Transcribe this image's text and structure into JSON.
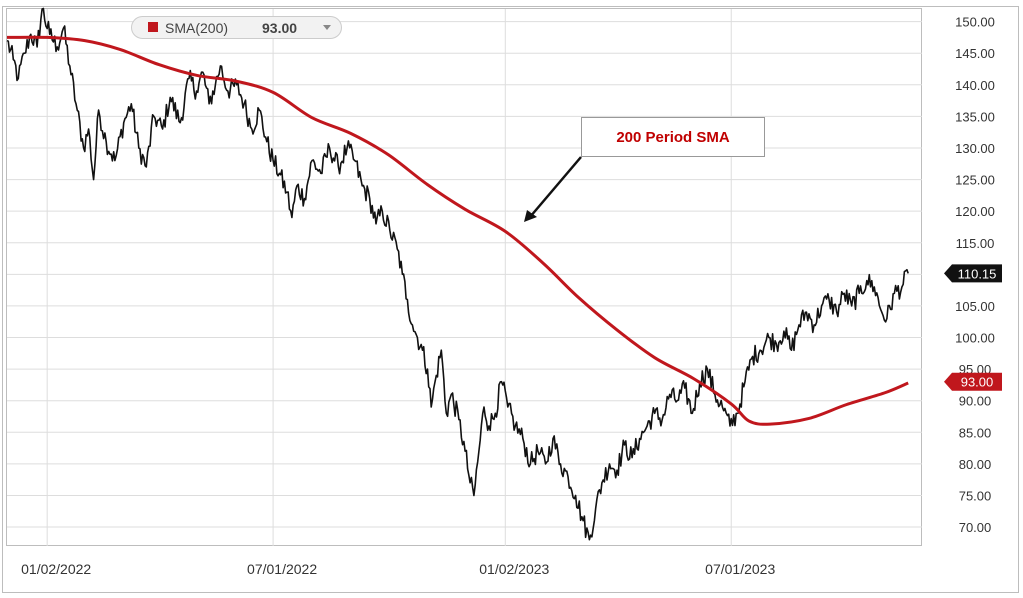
{
  "chart_data": {
    "type": "line",
    "x_type": "date",
    "xlim": [
      "2021-12-01",
      "2023-11-30"
    ],
    "ylim": [
      67,
      152
    ],
    "ytick_values": [
      70,
      75,
      80,
      85,
      90,
      95,
      100,
      105,
      110,
      115,
      120,
      125,
      130,
      135,
      140,
      145,
      150
    ],
    "ytick_labels": [
      "70.00",
      "75.00",
      "80.00",
      "85.00",
      "90.00",
      "95.00",
      "100.00",
      "105.00",
      "110.00",
      "115.00",
      "120.00",
      "125.00",
      "130.00",
      "135.00",
      "140.00",
      "145.00",
      "150.00"
    ],
    "xtick_values": [
      "2022-01-02",
      "2022-07-01",
      "2023-01-02",
      "2023-07-01"
    ],
    "xtick_labels": [
      "01/02/2022",
      "07/01/2022",
      "01/02/2023",
      "07/01/2023"
    ],
    "grid": true,
    "colors": {
      "price": "#111111",
      "sma": "#c0171d",
      "grid": "#dddddd",
      "badge_price": "#111111",
      "badge_sma": "#c0171d"
    },
    "legend": {
      "swatch_color": "#c0171d",
      "label": "SMA(200)",
      "value": "93.00"
    },
    "last_price_label": "110.15",
    "last_price": 110.15,
    "sma_last_label": "93.00",
    "sma_last": 93.0,
    "annotation": {
      "text": "200 Period SMA",
      "points_to": {
        "x": "2023-01-03",
        "y": 117.5
      }
    },
    "series": [
      {
        "role": "price",
        "points": [
          [
            "2021-12-01",
            147
          ],
          [
            "2021-12-06",
            144
          ],
          [
            "2021-12-10",
            141
          ],
          [
            "2021-12-15",
            145
          ],
          [
            "2021-12-20",
            148
          ],
          [
            "2021-12-25",
            146
          ],
          [
            "2021-12-29",
            152
          ],
          [
            "2022-01-04",
            148
          ],
          [
            "2022-01-10",
            146
          ],
          [
            "2022-01-15",
            149
          ],
          [
            "2022-01-20",
            143
          ],
          [
            "2022-01-25",
            137
          ],
          [
            "2022-01-31",
            130
          ],
          [
            "2022-02-04",
            133
          ],
          [
            "2022-02-08",
            125
          ],
          [
            "2022-02-12",
            136
          ],
          [
            "2022-02-18",
            131
          ],
          [
            "2022-02-25",
            128
          ],
          [
            "2022-03-04",
            134
          ],
          [
            "2022-03-10",
            137
          ],
          [
            "2022-03-16",
            130
          ],
          [
            "2022-03-22",
            127
          ],
          [
            "2022-03-28",
            135
          ],
          [
            "2022-04-04",
            133
          ],
          [
            "2022-04-10",
            138
          ],
          [
            "2022-04-18",
            134
          ],
          [
            "2022-04-25",
            141
          ],
          [
            "2022-05-01",
            139
          ],
          [
            "2022-05-06",
            142
          ],
          [
            "2022-05-11",
            137
          ],
          [
            "2022-05-16",
            140
          ],
          [
            "2022-05-20",
            143
          ],
          [
            "2022-05-26",
            139
          ],
          [
            "2022-06-02",
            140
          ],
          [
            "2022-06-08",
            137
          ],
          [
            "2022-06-14",
            133
          ],
          [
            "2022-06-20",
            136
          ],
          [
            "2022-06-26",
            131
          ],
          [
            "2022-07-01",
            128
          ],
          [
            "2022-07-06",
            126
          ],
          [
            "2022-07-12",
            123
          ],
          [
            "2022-07-16",
            119
          ],
          [
            "2022-07-20",
            124
          ],
          [
            "2022-07-26",
            122
          ],
          [
            "2022-08-01",
            128
          ],
          [
            "2022-08-08",
            126
          ],
          [
            "2022-08-15",
            130
          ],
          [
            "2022-08-22",
            127
          ],
          [
            "2022-08-29",
            130
          ],
          [
            "2022-09-04",
            128
          ],
          [
            "2022-09-10",
            124
          ],
          [
            "2022-09-16",
            122
          ],
          [
            "2022-09-21",
            118
          ],
          [
            "2022-09-26",
            120
          ],
          [
            "2022-10-02",
            117
          ],
          [
            "2022-10-08",
            114
          ],
          [
            "2022-10-12",
            110
          ],
          [
            "2022-10-16",
            106
          ],
          [
            "2022-10-20",
            102
          ],
          [
            "2022-10-24",
            100
          ],
          [
            "2022-10-28",
            98
          ],
          [
            "2022-11-01",
            95
          ],
          [
            "2022-11-04",
            89
          ],
          [
            "2022-11-08",
            94
          ],
          [
            "2022-11-12",
            98
          ],
          [
            "2022-11-16",
            88
          ],
          [
            "2022-11-20",
            91
          ],
          [
            "2022-11-26",
            87
          ],
          [
            "2022-12-01",
            82
          ],
          [
            "2022-12-05",
            77
          ],
          [
            "2022-12-08",
            75
          ],
          [
            "2022-12-12",
            82
          ],
          [
            "2022-12-16",
            89
          ],
          [
            "2022-12-20",
            86
          ],
          [
            "2022-12-25",
            88
          ],
          [
            "2022-12-30",
            93
          ],
          [
            "2023-01-04",
            89
          ],
          [
            "2023-01-10",
            86
          ],
          [
            "2023-01-16",
            84
          ],
          [
            "2023-01-22",
            80
          ],
          [
            "2023-01-28",
            82
          ],
          [
            "2023-02-03",
            80
          ],
          [
            "2023-02-09",
            84
          ],
          [
            "2023-02-15",
            80
          ],
          [
            "2023-02-21",
            78
          ],
          [
            "2023-02-27",
            75
          ],
          [
            "2023-03-05",
            71
          ],
          [
            "2023-03-10",
            68
          ],
          [
            "2023-03-15",
            73
          ],
          [
            "2023-03-20",
            77
          ],
          [
            "2023-03-26",
            80
          ],
          [
            "2023-04-01",
            79
          ],
          [
            "2023-04-07",
            83
          ],
          [
            "2023-04-13",
            81
          ],
          [
            "2023-04-19",
            84
          ],
          [
            "2023-04-25",
            86
          ],
          [
            "2023-05-01",
            88
          ],
          [
            "2023-05-07",
            87
          ],
          [
            "2023-05-13",
            91
          ],
          [
            "2023-05-19",
            90
          ],
          [
            "2023-05-25",
            92
          ],
          [
            "2023-05-31",
            88
          ],
          [
            "2023-06-06",
            93
          ],
          [
            "2023-06-12",
            95
          ],
          [
            "2023-06-18",
            91
          ],
          [
            "2023-06-24",
            89
          ],
          [
            "2023-06-30",
            86
          ],
          [
            "2023-07-06",
            88
          ],
          [
            "2023-07-12",
            93
          ],
          [
            "2023-07-18",
            97
          ],
          [
            "2023-07-24",
            98
          ],
          [
            "2023-07-31",
            100
          ],
          [
            "2023-08-06",
            99
          ],
          [
            "2023-08-12",
            101
          ],
          [
            "2023-08-18",
            98
          ],
          [
            "2023-08-24",
            102
          ],
          [
            "2023-08-30",
            104
          ],
          [
            "2023-09-05",
            102
          ],
          [
            "2023-09-11",
            105
          ],
          [
            "2023-09-17",
            106
          ],
          [
            "2023-09-23",
            104
          ],
          [
            "2023-09-29",
            107
          ],
          [
            "2023-10-05",
            105
          ],
          [
            "2023-10-11",
            107
          ],
          [
            "2023-10-17",
            109
          ],
          [
            "2023-10-23",
            108
          ],
          [
            "2023-10-29",
            104
          ],
          [
            "2023-11-02",
            103
          ],
          [
            "2023-11-08",
            107
          ],
          [
            "2023-11-14",
            108
          ],
          [
            "2023-11-19",
            110.15
          ]
        ]
      },
      {
        "role": "sma",
        "points": [
          [
            "2021-12-01",
            147.5
          ],
          [
            "2022-01-02",
            147.5
          ],
          [
            "2022-02-01",
            147
          ],
          [
            "2022-03-01",
            145.6
          ],
          [
            "2022-04-01",
            143.2
          ],
          [
            "2022-05-01",
            141.5
          ],
          [
            "2022-06-01",
            140.6
          ],
          [
            "2022-07-01",
            138.8
          ],
          [
            "2022-08-01",
            134.8
          ],
          [
            "2022-09-01",
            132.3
          ],
          [
            "2022-10-01",
            128.9
          ],
          [
            "2022-11-01",
            124.2
          ],
          [
            "2022-12-01",
            120.3
          ],
          [
            "2023-01-02",
            116.8
          ],
          [
            "2023-02-01",
            111.8
          ],
          [
            "2023-03-01",
            106.4
          ],
          [
            "2023-04-01",
            101.2
          ],
          [
            "2023-05-01",
            96.8
          ],
          [
            "2023-06-01",
            93.5
          ],
          [
            "2023-07-01",
            89.5
          ],
          [
            "2023-07-15",
            86.8
          ],
          [
            "2023-08-01",
            86.3
          ],
          [
            "2023-09-01",
            87.2
          ],
          [
            "2023-10-01",
            89.4
          ],
          [
            "2023-11-01",
            91.3
          ],
          [
            "2023-11-19",
            92.8
          ]
        ]
      }
    ]
  }
}
